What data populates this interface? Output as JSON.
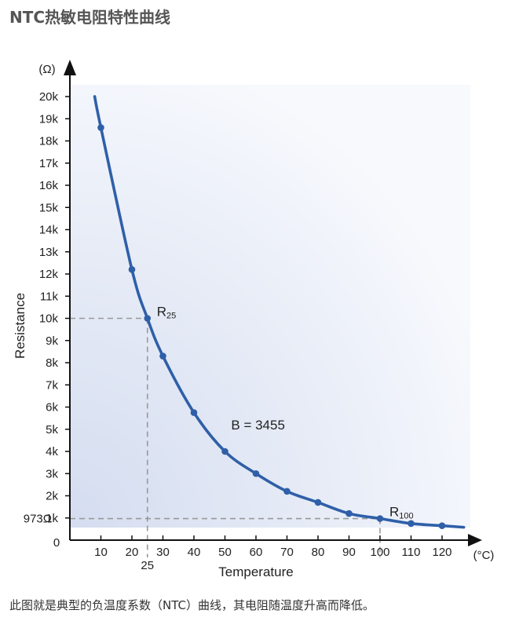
{
  "page": {
    "title": "NTC热敏电阻特性曲线",
    "caption": "此图就是典型的负温度系数（NTC）曲线，其电阻随温度升高而降低。"
  },
  "chart_data": {
    "type": "line",
    "xlabel": "Temperature",
    "ylabel": "Resistance",
    "x_unit": "(°C)",
    "y_unit": "(Ω)",
    "xlim": [
      0,
      130
    ],
    "ylim": [
      0,
      20800
    ],
    "x_ticks": [
      10,
      20,
      30,
      40,
      50,
      60,
      70,
      80,
      90,
      100,
      110,
      120
    ],
    "x_tick_labels": [
      "10",
      "20",
      "30",
      "40",
      "50",
      "60",
      "70",
      "80",
      "90",
      "100",
      "110",
      "120"
    ],
    "y_ticks": [
      1000,
      2000,
      3000,
      4000,
      5000,
      6000,
      7000,
      8000,
      9000,
      10000,
      11000,
      12000,
      13000,
      14000,
      15000,
      16000,
      17000,
      18000,
      19000,
      20000
    ],
    "y_tick_labels": [
      "1k",
      "2k",
      "3k",
      "4k",
      "5k",
      "6k",
      "7k",
      "8k",
      "9k",
      "10k",
      "11k",
      "12k",
      "13k",
      "14k",
      "15k",
      "16k",
      "17k",
      "18k",
      "19k",
      "20k"
    ],
    "origin_label": "0",
    "series": [
      {
        "color": "#2f5fa8",
        "curve_x": [
          8,
          10,
          20,
          25,
          30,
          40,
          50,
          60,
          70,
          80,
          90,
          100,
          110,
          120,
          127
        ],
        "curve_y": [
          20000,
          18600,
          12200,
          10000,
          8300,
          5750,
          4000,
          3000,
          2200,
          1700,
          1200,
          973,
          750,
          650,
          580
        ],
        "marker_x": [
          10,
          20,
          25,
          30,
          40,
          50,
          60,
          70,
          80,
          90,
          100,
          110,
          120
        ],
        "marker_y": [
          18600,
          12200,
          10000,
          8300,
          5750,
          4000,
          3000,
          2200,
          1700,
          1200,
          973,
          750,
          650
        ]
      }
    ],
    "reference_lines": [
      {
        "x": 25,
        "y": 10000,
        "x_label": "25",
        "point_label": "R",
        "point_sub": "25"
      },
      {
        "x": 100,
        "y": 973,
        "y_label": "973Ω",
        "point_label": "R",
        "point_sub": "100"
      }
    ],
    "annotations": [
      {
        "text": "B = 3455",
        "x": 52,
        "y": 5000
      }
    ],
    "grid": false
  }
}
